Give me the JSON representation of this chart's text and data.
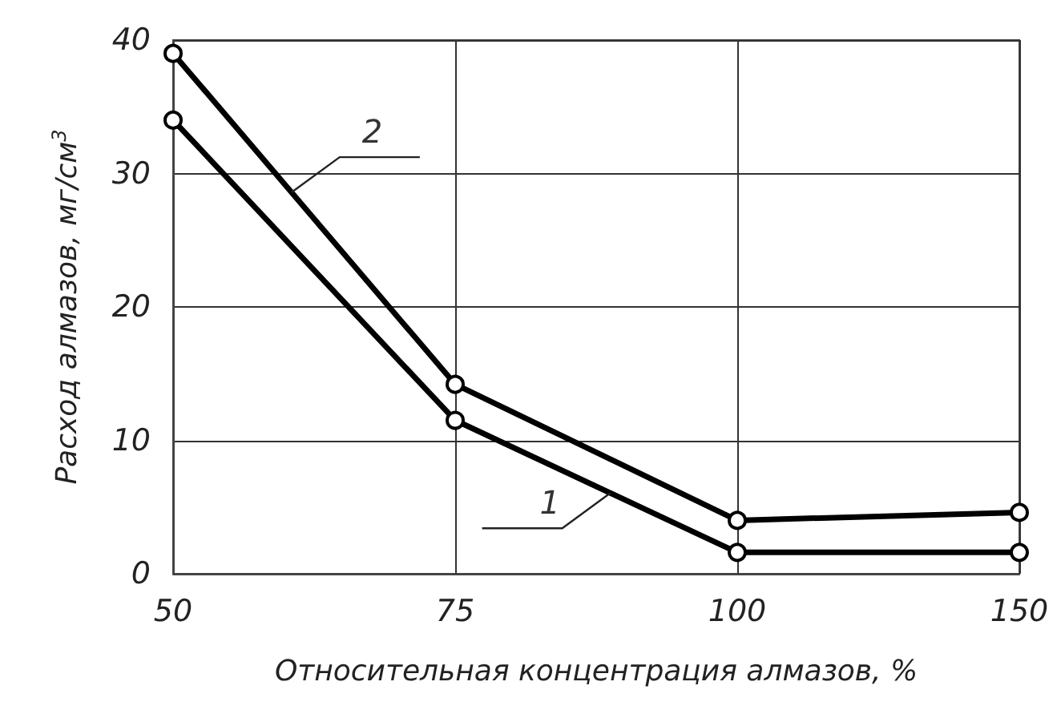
{
  "chart_data": {
    "type": "line",
    "xlabel": "Относительная концентрация алмазов, %",
    "ylabel": "Расход алмазов, мг/см$^{3}$",
    "categories": [
      "50",
      "75",
      "100",
      "150"
    ],
    "series": [
      {
        "name": "1",
        "color": "#000000",
        "values": [
          34,
          11.5,
          1.6,
          1.6
        ]
      },
      {
        "name": "2",
        "color": "#000000",
        "values": [
          39,
          14.2,
          4,
          4.6
        ]
      }
    ],
    "ylim": [
      0,
      40
    ],
    "yticks": [
      0,
      10,
      20,
      30,
      40
    ],
    "grid": true,
    "legend": false,
    "marker": "circle",
    "line_style": "solid"
  }
}
